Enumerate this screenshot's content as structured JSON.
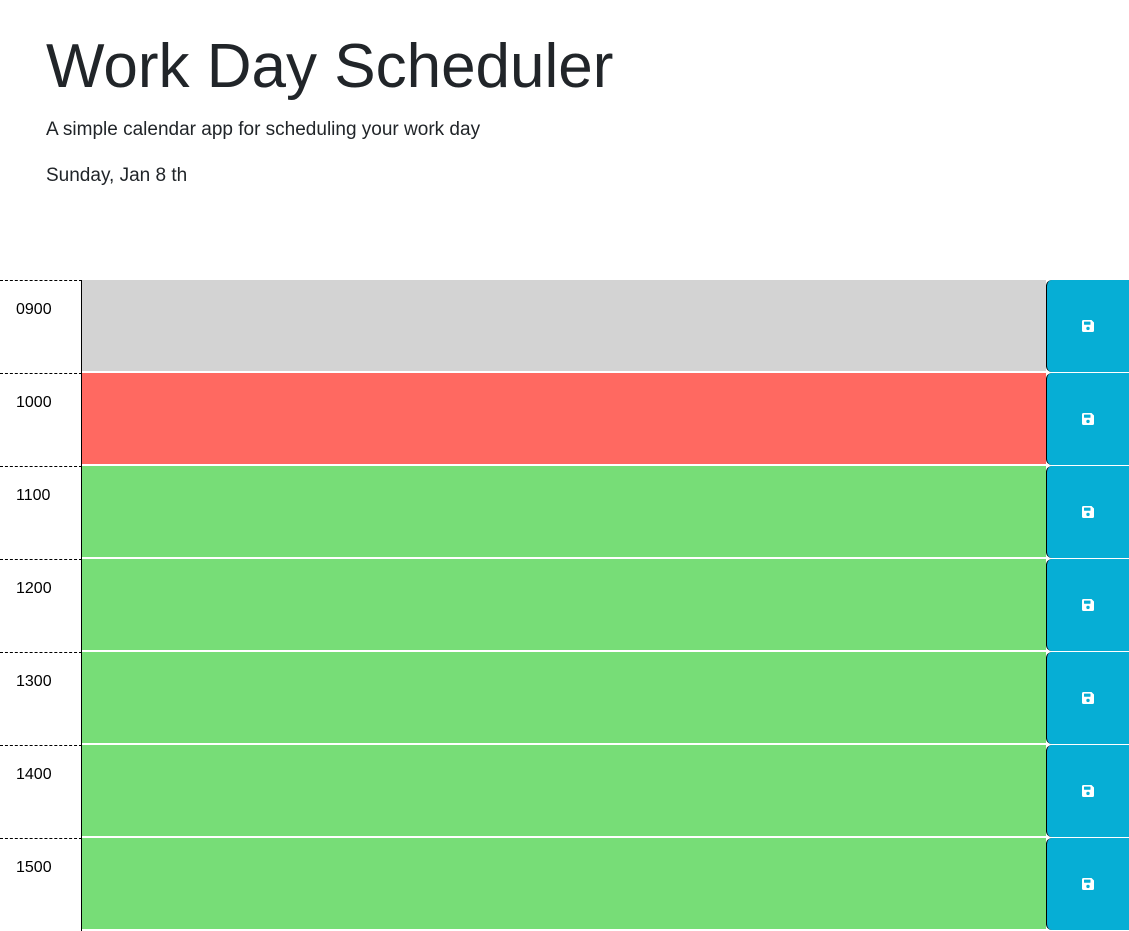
{
  "header": {
    "title": "Work Day Scheduler",
    "subtitle": "A simple calendar app for scheduling your work day",
    "current_day": "Sunday, Jan 8 th"
  },
  "colors": {
    "past": "#d3d3d3",
    "present": "#ff6961",
    "future": "#77dd77",
    "save_button": "#06aed5"
  },
  "rows": [
    {
      "hour": "0900",
      "status": "past",
      "text": "",
      "save_icon": "save-icon"
    },
    {
      "hour": "1000",
      "status": "present",
      "text": "",
      "save_icon": "save-icon"
    },
    {
      "hour": "1100",
      "status": "future",
      "text": "",
      "save_icon": "save-icon"
    },
    {
      "hour": "1200",
      "status": "future",
      "text": "",
      "save_icon": "save-icon"
    },
    {
      "hour": "1300",
      "status": "future",
      "text": "",
      "save_icon": "save-icon"
    },
    {
      "hour": "1400",
      "status": "future",
      "text": "",
      "save_icon": "save-icon"
    },
    {
      "hour": "1500",
      "status": "future",
      "text": "",
      "save_icon": "save-icon"
    }
  ]
}
